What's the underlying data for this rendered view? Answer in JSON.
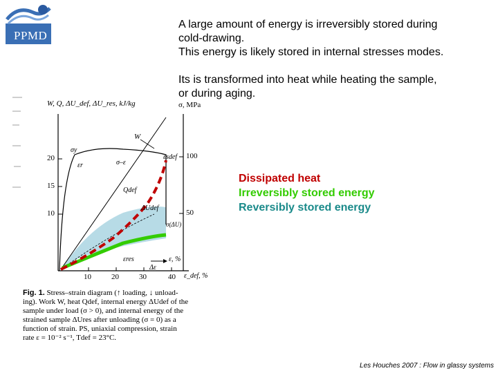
{
  "logo": {
    "text": "PPMD"
  },
  "text": {
    "line1": "A large amount of energy is irreversibly stored during",
    "line2": "cold-drawing.",
    "line3": "This energy is likely stored in internal stresses modes.",
    "line4": "Its is transformed into heat while heating the sample,",
    "line5": "or during aging."
  },
  "legend": {
    "dissipated": "Dissipated heat",
    "dissipated_color": "#c00000",
    "irreversible": "Irreversibly stored energy",
    "irreversible_color": "#33cc00",
    "reversible": "Reversibly stored energy",
    "reversible_color": "#1a8a8a"
  },
  "figure": {
    "left_axis_title": "W, Q, ΔU_def, ΔU_res, kJ/kg",
    "right_axis_title": "σ, MPa",
    "left_ticks": [
      "20",
      "15",
      "10"
    ],
    "right_ticks": [
      "100",
      "50"
    ],
    "x_ticks": [
      "10",
      "20",
      "30",
      "40"
    ],
    "x_axis_label": "ε_def, %",
    "labels": {
      "W": "W",
      "sigma_y": "σy",
      "eps_r": "εr",
      "sigma_eps": "σ–ε",
      "eps_sdef": "εsdef",
      "Q_def": "Qdef",
      "dU_def": "ΔUdef",
      "dU": "σ(ΔU)",
      "eps": "ε, %",
      "eps_res": "εres",
      "d_eps": "Δε"
    },
    "caption_title": "Fig. 1.",
    "caption": [
      "Stress–strain diagram (↑ loading, ↓ unload-",
      "ing). Work W, heat Qdef, internal energy ΔUdef of the",
      "sample under load (σ > 0), and internal energy of the",
      "strained sample ΔUres after unloading (σ = 0) as a",
      "function of strain. PS, uniaxial compression, strain",
      "rate ε = 10⁻² s⁻¹, Tdef = 23°C."
    ]
  },
  "footer": "Les Houches 2007 : Flow in glassy systems"
}
